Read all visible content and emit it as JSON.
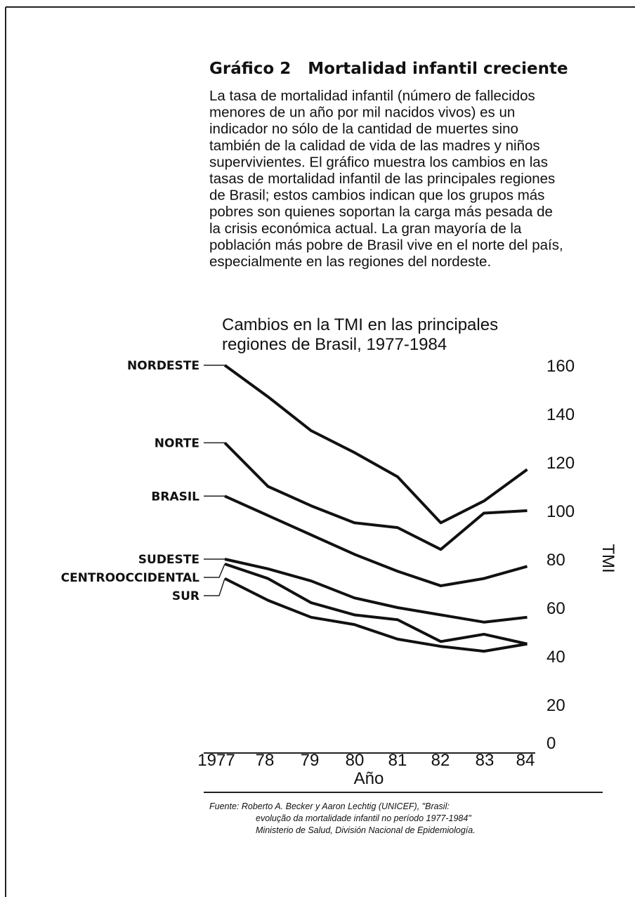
{
  "document": {
    "title": "Gráfico 2   Mortalidad infantil creciente",
    "paragraph": [
      "La tasa de mortalidad infantil (número de fallecidos",
      "menores de un año por mil nacidos vivos) es un",
      "indicador no sólo de la cantidad de muertes sino",
      "también de la calidad de vida de las madres y niños",
      "supervivientes. El gráfico muestra los cambios en las",
      "tasas de mortalidad infantil de las principales regiones",
      "de Brasil; estos cambios indican que los grupos más",
      "pobres son quienes soportan la carga más pesada de",
      "la crisis económica actual. La gran mayoría de la",
      "población más pobre de Brasil vive en el norte del país,",
      "especialmente en las regiones del nordeste."
    ],
    "source": [
      "Fuente:  Roberto A. Becker y Aaron Lechtig (UNICEF), \"Brasil:",
      "evolução da mortalidade infantil no período 1977-1984\"",
      "Ministerio de Salud, División Nacional de Epidemiología."
    ]
  },
  "chart_data": {
    "type": "line",
    "title": [
      "Cambios en la TMI en las principales",
      "regiones de Brasil, 1977-1984"
    ],
    "x_label": "Año",
    "y_label": "TMI",
    "categories": [
      "1977",
      "78",
      "79",
      "80",
      "81",
      "82",
      "83",
      "84"
    ],
    "ylim": [
      0,
      160
    ],
    "yticks": [
      0,
      20,
      40,
      60,
      80,
      100,
      120,
      140,
      160
    ],
    "series": [
      {
        "name": "NORDESTE",
        "color": "#111111",
        "values": [
          160,
          147,
          133,
          124,
          114,
          95,
          104,
          117
        ]
      },
      {
        "name": "NORTE",
        "color": "#111111",
        "values": [
          128,
          110,
          102,
          95,
          93,
          84,
          99,
          100
        ]
      },
      {
        "name": "BRASIL",
        "color": "#111111",
        "values": [
          106,
          98,
          90,
          82,
          75,
          69,
          72,
          77
        ]
      },
      {
        "name": "SUDESTE",
        "color": "#111111",
        "values": [
          80,
          76,
          71,
          64,
          60,
          57,
          54,
          56
        ]
      },
      {
        "name": "CENTROOCCIDENTAL",
        "color": "#111111",
        "values": [
          78,
          72,
          62,
          57,
          55,
          46,
          49,
          45
        ]
      },
      {
        "name": "SUR",
        "color": "#111111",
        "values": [
          72,
          63,
          56,
          53,
          47,
          44,
          42,
          45
        ]
      }
    ]
  }
}
